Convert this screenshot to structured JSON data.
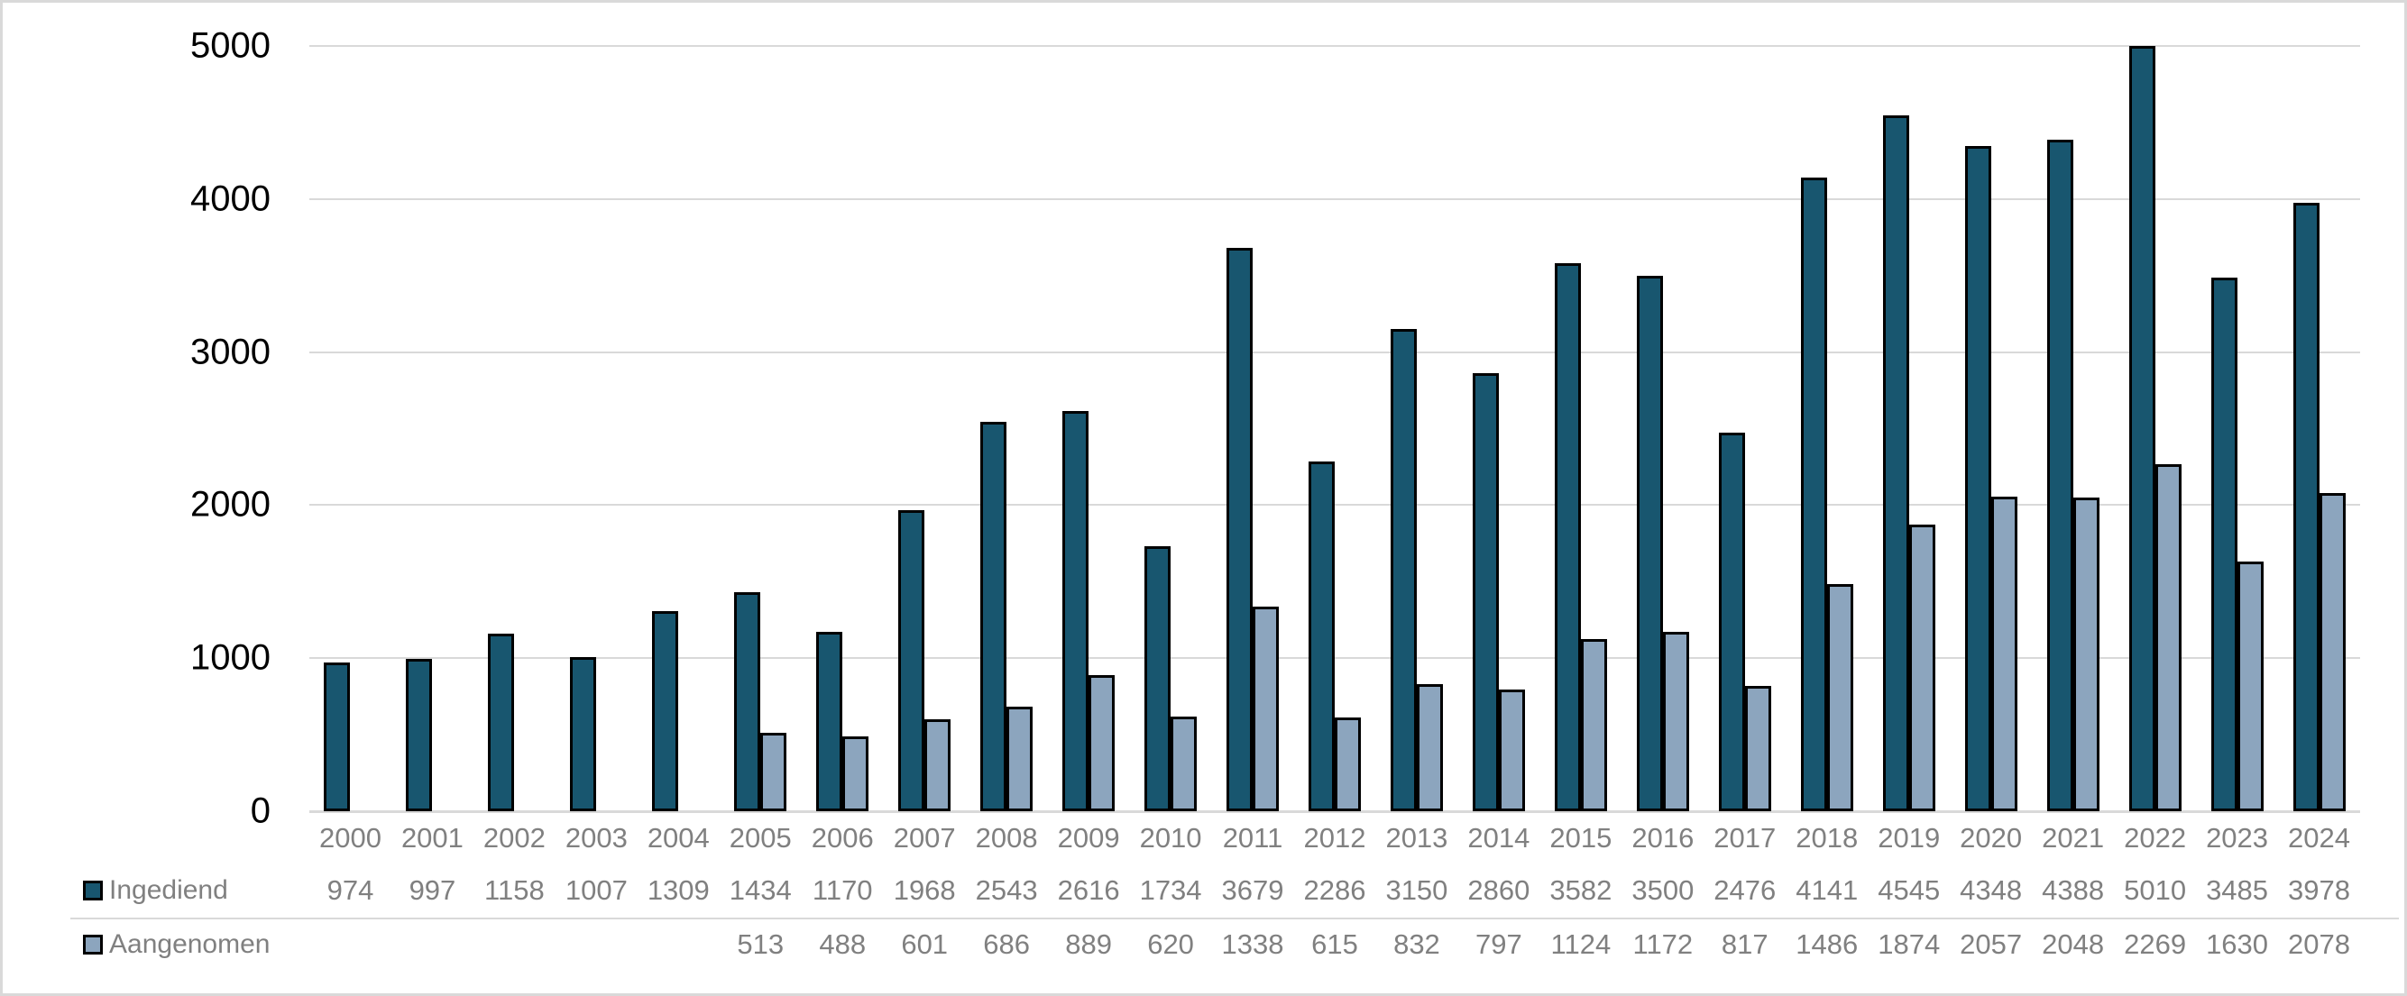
{
  "chart_data": {
    "type": "bar",
    "title": "",
    "xlabel": "",
    "ylabel": "",
    "categories": [
      "2000",
      "2001",
      "2002",
      "2003",
      "2004",
      "2005",
      "2006",
      "2007",
      "2008",
      "2009",
      "2010",
      "2011",
      "2012",
      "2013",
      "2014",
      "2015",
      "2016",
      "2017",
      "2018",
      "2019",
      "2020",
      "2021",
      "2022",
      "2023",
      "2024"
    ],
    "series": [
      {
        "name": "Ingediend",
        "color": "#18566F",
        "values": [
          974,
          997,
          1158,
          1007,
          1309,
          1434,
          1170,
          1968,
          2543,
          2616,
          1734,
          3679,
          2286,
          3150,
          2860,
          3582,
          3500,
          2476,
          4141,
          4545,
          4348,
          4388,
          5010,
          3485,
          3978
        ]
      },
      {
        "name": "Aangenomen",
        "color": "#8CA5BE",
        "values": [
          null,
          null,
          null,
          null,
          null,
          513,
          488,
          601,
          686,
          889,
          620,
          1338,
          615,
          832,
          797,
          1124,
          1172,
          817,
          1486,
          1874,
          2057,
          2048,
          2269,
          1630,
          2078
        ]
      }
    ],
    "ylim": [
      0,
      5000
    ],
    "yticks": [
      0,
      1000,
      2000,
      3000,
      4000,
      5000
    ],
    "ytick_labels": [
      "0",
      "1000",
      "2000",
      "3000",
      "4000",
      "5000"
    ],
    "grid": true,
    "legend_position": "data-table-left",
    "bar_border_color": "#000000"
  },
  "colors": {
    "background": "#FFFFFF",
    "frame_border": "#D9D9D9",
    "gridline": "#D9D9D9",
    "axis_line": "#D9D9D9",
    "separator_line": "#D9D9D9",
    "ytick_text": "#000000",
    "table_text": "#808080",
    "series1_fill": "#18566F",
    "series2_fill": "#8CA5BE"
  }
}
